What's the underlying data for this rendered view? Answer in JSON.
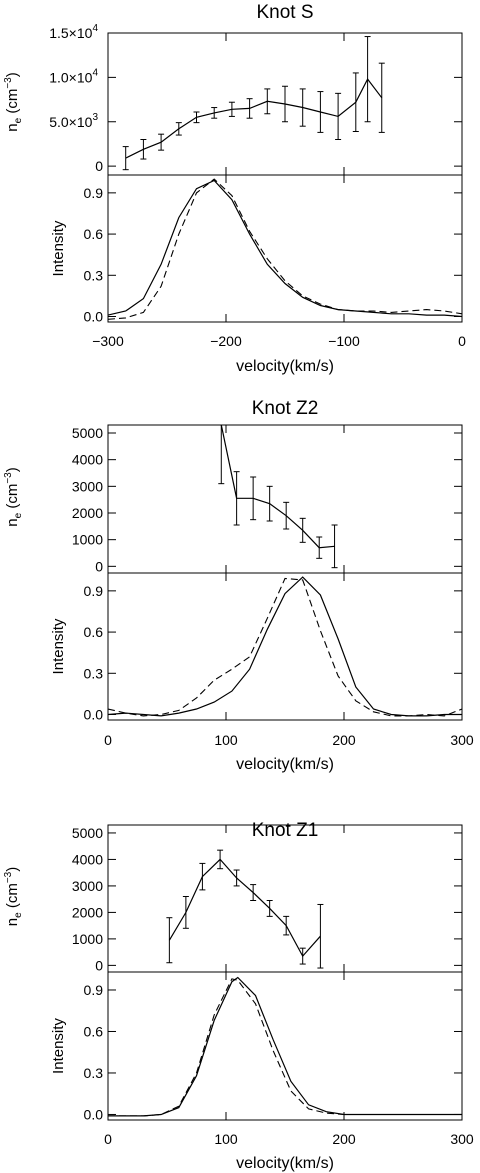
{
  "chart_data": [
    {
      "type": "line",
      "title": "Knot S",
      "xlabel": "velocity(km/s)",
      "xlim": [
        -300,
        0
      ],
      "xticks": [
        -300,
        -200,
        -100,
        0
      ],
      "x_tick_labels": [
        "−300",
        "−200",
        "−100",
        "0"
      ],
      "density": {
        "ylabel": "n",
        "ylabel_sub": "e",
        "ylabel_unit": " (cm",
        "ylabel_exp": "−3",
        "ylabel_close": ")",
        "ylim": [
          -1000,
          15000
        ],
        "yticks": [
          {
            "value": 0,
            "label": "0",
            "exp": ""
          },
          {
            "value": 5000,
            "label": "5.0×10",
            "exp": "3"
          },
          {
            "value": 10000,
            "label": "1.0×10",
            "exp": "4"
          },
          {
            "value": 15000,
            "label": "1.5×10",
            "exp": "4"
          }
        ],
        "x": [
          -285,
          -270,
          -255,
          -240,
          -225,
          -210,
          -195,
          -180,
          -165,
          -150,
          -135,
          -120,
          -105,
          -90,
          -80,
          -68
        ],
        "y": [
          900,
          1900,
          2700,
          4200,
          5500,
          6000,
          6400,
          6500,
          7300,
          7000,
          6600,
          6100,
          5600,
          7200,
          9800,
          7700
        ],
        "err": [
          1300,
          1100,
          900,
          700,
          600,
          600,
          800,
          1100,
          1400,
          2000,
          2100,
          2300,
          2600,
          3300,
          4800,
          3900
        ]
      },
      "intensity": {
        "ylabel": "Intensity",
        "ylim": [
          -0.04,
          1.03
        ],
        "yticks": [
          0,
          0.3,
          0.6,
          0.9
        ],
        "y_tick_labels": [
          "0.0",
          "0.3",
          "0.6",
          "0.9"
        ],
        "series": [
          {
            "style": "solid",
            "x": [
              -300,
              -285,
              -270,
              -255,
              -240,
              -225,
              -210,
              -195,
              -180,
              -165,
              -150,
              -135,
              -120,
              -105,
              -90,
              -75,
              -60,
              -45,
              -30,
              -15,
              0
            ],
            "y": [
              0.01,
              0.04,
              0.13,
              0.38,
              0.72,
              0.93,
              0.99,
              0.85,
              0.6,
              0.38,
              0.24,
              0.14,
              0.08,
              0.05,
              0.04,
              0.03,
              0.02,
              0.02,
              0.01,
              0.01,
              0.0
            ]
          },
          {
            "style": "dashed",
            "x": [
              -300,
              -285,
              -270,
              -255,
              -240,
              -225,
              -210,
              -195,
              -180,
              -165,
              -150,
              -135,
              -120,
              -105,
              -90,
              -75,
              -60,
              -45,
              -30,
              -15,
              0
            ],
            "y": [
              -0.02,
              -0.01,
              0.03,
              0.22,
              0.6,
              0.9,
              1.0,
              0.88,
              0.62,
              0.42,
              0.26,
              0.15,
              0.09,
              0.05,
              0.04,
              0.04,
              0.03,
              0.04,
              0.05,
              0.04,
              0.02
            ]
          }
        ]
      }
    },
    {
      "type": "line",
      "title": "Knot Z2",
      "xlabel": "velocity(km/s)",
      "xlim": [
        0,
        300
      ],
      "xticks": [
        0,
        100,
        200,
        300
      ],
      "x_tick_labels": [
        "0",
        "100",
        "200",
        "300"
      ],
      "density": {
        "ylabel": "n",
        "ylabel_sub": "e",
        "ylabel_unit": " (cm",
        "ylabel_exp": "−3",
        "ylabel_close": ")",
        "ylim": [
          -250,
          5300
        ],
        "yticks": [
          {
            "value": 0,
            "label": "0",
            "exp": ""
          },
          {
            "value": 1000,
            "label": "1000",
            "exp": ""
          },
          {
            "value": 2000,
            "label": "2000",
            "exp": ""
          },
          {
            "value": 3000,
            "label": "3000",
            "exp": ""
          },
          {
            "value": 4000,
            "label": "4000",
            "exp": ""
          },
          {
            "value": 5000,
            "label": "5000",
            "exp": ""
          }
        ],
        "x": [
          96,
          109,
          123,
          137,
          151,
          165,
          179,
          192
        ],
        "y": [
          5300,
          2550,
          2550,
          2350,
          1900,
          1350,
          700,
          750
        ],
        "err": [
          2200,
          1000,
          800,
          650,
          500,
          450,
          400,
          800
        ]
      },
      "intensity": {
        "ylabel": "Intensity",
        "ylim": [
          -0.04,
          1.03
        ],
        "yticks": [
          0,
          0.3,
          0.6,
          0.9
        ],
        "y_tick_labels": [
          "0.0",
          "0.3",
          "0.6",
          "0.9"
        ],
        "series": [
          {
            "style": "solid",
            "x": [
              0,
              15,
              30,
              45,
              60,
              75,
              90,
              105,
              120,
              135,
              150,
              165,
              180,
              195,
              210,
              225,
              240,
              255,
              270,
              285,
              300
            ],
            "y": [
              0.0,
              0.01,
              0.0,
              -0.01,
              0.01,
              0.04,
              0.09,
              0.17,
              0.33,
              0.62,
              0.88,
              1.0,
              0.87,
              0.55,
              0.2,
              0.04,
              0.0,
              -0.01,
              -0.01,
              0.0,
              0.0
            ]
          },
          {
            "style": "dashed",
            "x": [
              0,
              15,
              30,
              45,
              60,
              75,
              90,
              105,
              120,
              135,
              150,
              165,
              180,
              195,
              210,
              225,
              240,
              255,
              270,
              285,
              300
            ],
            "y": [
              0.04,
              0.01,
              -0.01,
              0.0,
              0.03,
              0.12,
              0.25,
              0.33,
              0.42,
              0.7,
              0.99,
              0.98,
              0.61,
              0.28,
              0.1,
              0.02,
              -0.01,
              -0.01,
              0.0,
              -0.01,
              0.04
            ]
          }
        ]
      }
    },
    {
      "type": "line",
      "title": "Knot Z1",
      "xlabel": "velocity(km/s)",
      "xlim": [
        0,
        300
      ],
      "xticks": [
        0,
        100,
        200,
        300
      ],
      "x_tick_labels": [
        "0",
        "100",
        "200",
        "300"
      ],
      "density": {
        "ylabel": "n",
        "ylabel_sub": "e",
        "ylabel_unit": " (cm",
        "ylabel_exp": "−3",
        "ylabel_close": ")",
        "ylim": [
          -250,
          5300
        ],
        "yticks": [
          {
            "value": 0,
            "label": "0",
            "exp": ""
          },
          {
            "value": 1000,
            "label": "1000",
            "exp": ""
          },
          {
            "value": 2000,
            "label": "2000",
            "exp": ""
          },
          {
            "value": 3000,
            "label": "3000",
            "exp": ""
          },
          {
            "value": 4000,
            "label": "4000",
            "exp": ""
          },
          {
            "value": 5000,
            "label": "5000",
            "exp": ""
          }
        ],
        "x": [
          52,
          66,
          80,
          95,
          109,
          123,
          137,
          151,
          165,
          180
        ],
        "y": [
          950,
          2000,
          3350,
          4000,
          3300,
          2750,
          2150,
          1500,
          350,
          1100
        ],
        "err": [
          850,
          600,
          500,
          350,
          300,
          300,
          300,
          350,
          300,
          1200
        ]
      },
      "intensity": {
        "ylabel": "Intensity",
        "ylim": [
          -0.04,
          1.03
        ],
        "yticks": [
          0,
          0.3,
          0.6,
          0.9
        ],
        "y_tick_labels": [
          "0.0",
          "0.3",
          "0.6",
          "0.9"
        ],
        "series": [
          {
            "style": "solid",
            "x": [
              0,
              15,
              30,
              45,
              60,
              75,
              90,
              105,
              110,
              125,
              140,
              155,
              170,
              185,
              200,
              215,
              230,
              245,
              260,
              275,
              290,
              300
            ],
            "y": [
              -0.01,
              -0.01,
              -0.01,
              0.0,
              0.05,
              0.28,
              0.68,
              0.96,
              0.99,
              0.86,
              0.54,
              0.24,
              0.07,
              0.02,
              0.0,
              0.0,
              0.0,
              0.0,
              0.0,
              0.0,
              0.0,
              0.0
            ]
          },
          {
            "style": "dashed",
            "x": [
              0,
              15,
              30,
              45,
              60,
              75,
              90,
              105,
              110,
              125,
              140,
              155,
              170,
              185,
              200,
              215,
              230,
              245,
              260,
              275,
              290,
              300
            ],
            "y": [
              -0.01,
              -0.01,
              -0.01,
              0.0,
              0.06,
              0.3,
              0.72,
              0.98,
              0.97,
              0.8,
              0.46,
              0.17,
              0.04,
              0.01,
              0.0,
              0.0,
              0.0,
              0.0,
              0.0,
              0.0,
              0.0,
              0.0
            ]
          }
        ]
      }
    }
  ]
}
